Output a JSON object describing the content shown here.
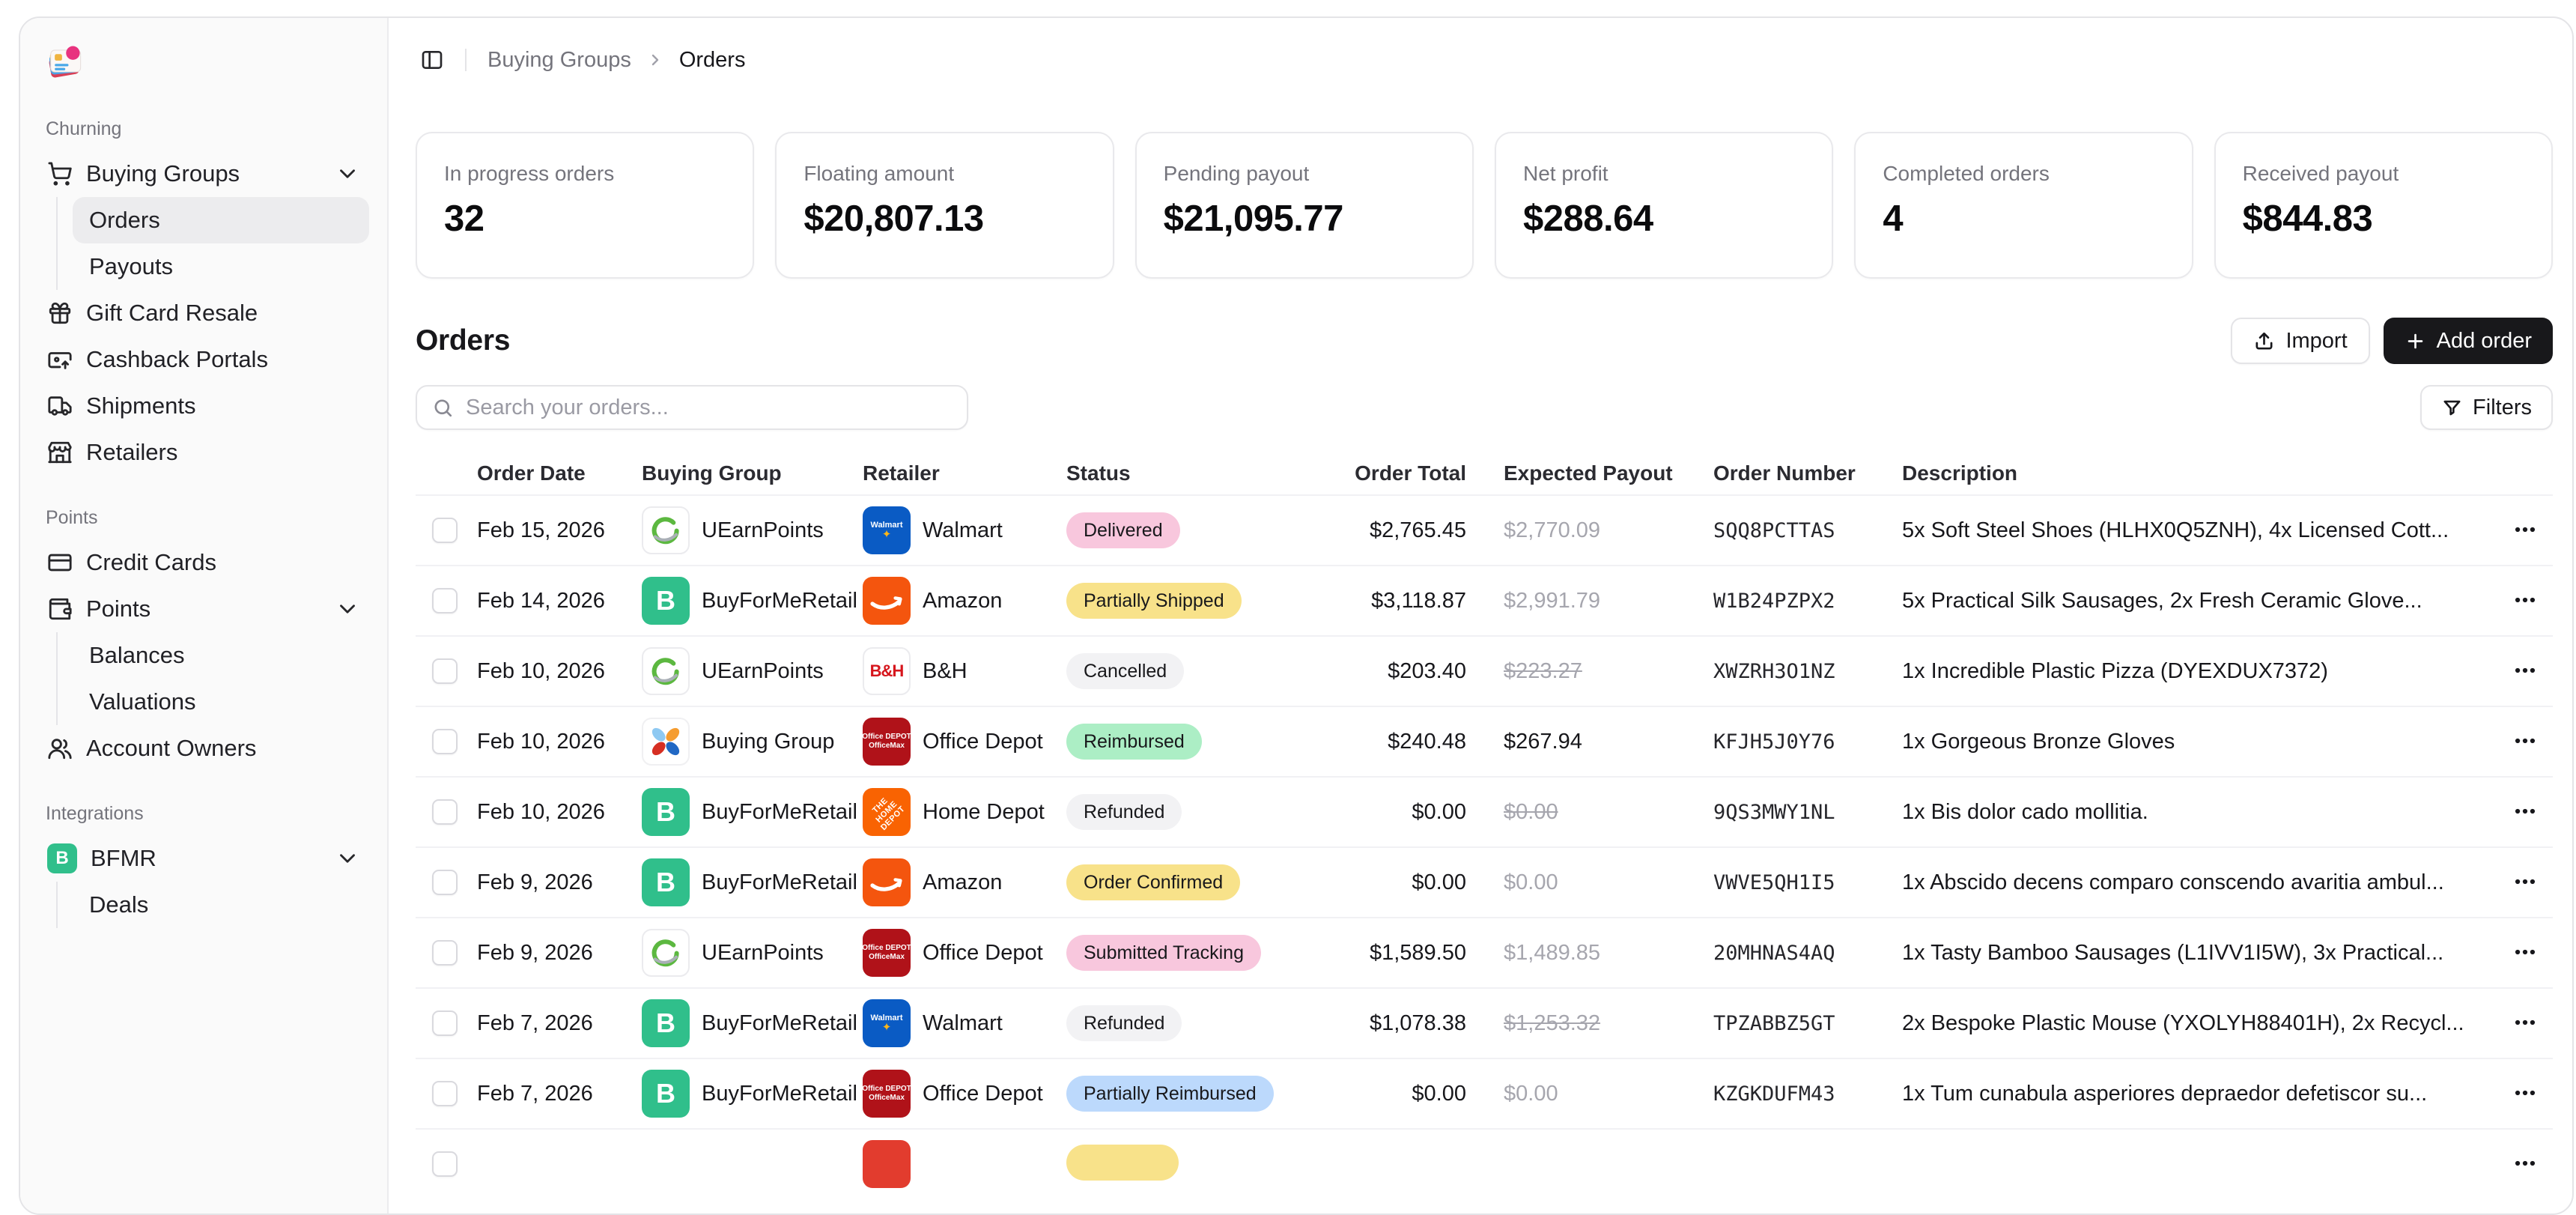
{
  "sidebar": {
    "section_churning": "Churning",
    "section_points": "Points",
    "section_integrations": "Integrations",
    "buying_groups": "Buying Groups",
    "orders": "Orders",
    "payouts": "Payouts",
    "gift_card_resale": "Gift Card Resale",
    "cashback_portals": "Cashback Portals",
    "shipments": "Shipments",
    "retailers": "Retailers",
    "credit_cards": "Credit Cards",
    "points": "Points",
    "balances": "Balances",
    "valuations": "Valuations",
    "account_owners": "Account Owners",
    "bfmr": "BFMR",
    "deals": "Deals"
  },
  "breadcrumb": {
    "parent": "Buying Groups",
    "current": "Orders"
  },
  "stats": [
    {
      "label": "In progress orders",
      "value": "32"
    },
    {
      "label": "Floating amount",
      "value": "$20,807.13"
    },
    {
      "label": "Pending payout",
      "value": "$21,095.77"
    },
    {
      "label": "Net profit",
      "value": "$288.64"
    },
    {
      "label": "Completed orders",
      "value": "4"
    },
    {
      "label": "Received payout",
      "value": "$844.83"
    }
  ],
  "orders_section": {
    "title": "Orders",
    "import_label": "Import",
    "add_order_label": "Add order",
    "search_placeholder": "Search your orders...",
    "filters_label": "Filters"
  },
  "table": {
    "columns": [
      "Order Date",
      "Buying Group",
      "Retailer",
      "Status",
      "Order Total",
      "Expected Payout",
      "Order Number",
      "Description"
    ],
    "rows": [
      {
        "date": "Feb 15, 2026",
        "group": "UEarnPoints",
        "group_icon": "uearnpoints",
        "retailer": "Walmart",
        "retailer_icon": "walmart",
        "status": "Delivered",
        "status_color": "pink",
        "total": "$2,765.45",
        "payout": "$2,770.09",
        "payout_style": "muted",
        "order_number": "SQQ8PCTTAS",
        "description": "5x Soft Steel Shoes (HLHX0Q5ZNH), 4x Licensed Cott..."
      },
      {
        "date": "Feb 14, 2026",
        "group": "BuyForMeRetail",
        "group_icon": "bfmr",
        "retailer": "Amazon",
        "retailer_icon": "amazon",
        "status": "Partially Shipped",
        "status_color": "yellow",
        "total": "$3,118.87",
        "payout": "$2,991.79",
        "payout_style": "muted",
        "order_number": "W1B24PZPX2",
        "description": "5x Practical Silk Sausages, 2x Fresh Ceramic Glove..."
      },
      {
        "date": "Feb 10, 2026",
        "group": "UEarnPoints",
        "group_icon": "uearnpoints",
        "retailer": "B&H",
        "retailer_icon": "bh",
        "status": "Cancelled",
        "status_color": "gray",
        "total": "$203.40",
        "payout": "$223.27",
        "payout_style": "struck",
        "order_number": "XWZRH3O1NZ",
        "description": "1x Incredible Plastic Pizza (DYEXDUX7372)"
      },
      {
        "date": "Feb 10, 2026",
        "group": "Buying Group",
        "group_icon": "pinwheel",
        "retailer": "Office Depot",
        "retailer_icon": "officedepot",
        "status": "Reimbursed",
        "status_color": "green",
        "total": "$240.48",
        "payout": "$267.94",
        "payout_style": "dark",
        "order_number": "KFJH5J0Y76",
        "description": "1x Gorgeous Bronze Gloves"
      },
      {
        "date": "Feb 10, 2026",
        "group": "BuyForMeRetail",
        "group_icon": "bfmr",
        "retailer": "Home Depot",
        "retailer_icon": "homedepot",
        "status": "Refunded",
        "status_color": "gray",
        "total": "$0.00",
        "payout": "$0.00",
        "payout_style": "struck",
        "order_number": "9QS3MWY1NL",
        "description": "1x Bis dolor cado mollitia."
      },
      {
        "date": "Feb 9, 2026",
        "group": "BuyForMeRetail",
        "group_icon": "bfmr",
        "retailer": "Amazon",
        "retailer_icon": "amazon",
        "status": "Order Confirmed",
        "status_color": "yellow",
        "total": "$0.00",
        "payout": "$0.00",
        "payout_style": "muted",
        "order_number": "VWVE5QH1I5",
        "description": "1x Abscido decens comparo conscendo avaritia ambul..."
      },
      {
        "date": "Feb 9, 2026",
        "group": "UEarnPoints",
        "group_icon": "uearnpoints",
        "retailer": "Office Depot",
        "retailer_icon": "officedepot",
        "status": "Submitted Tracking",
        "status_color": "pink",
        "total": "$1,589.50",
        "payout": "$1,489.85",
        "payout_style": "muted",
        "order_number": "20MHNAS4AQ",
        "description": "1x Tasty Bamboo Sausages (L1IVV1I5W), 3x Practical..."
      },
      {
        "date": "Feb 7, 2026",
        "group": "BuyForMeRetail",
        "group_icon": "bfmr",
        "retailer": "Walmart",
        "retailer_icon": "walmart",
        "status": "Refunded",
        "status_color": "gray",
        "total": "$1,078.38",
        "payout": "$1,253.32",
        "payout_style": "struck",
        "order_number": "TPZABBZ5GT",
        "description": "2x Bespoke Plastic Mouse (YXOLYH88401H), 2x Recycl..."
      },
      {
        "date": "Feb 7, 2026",
        "group": "BuyForMeRetail",
        "group_icon": "bfmr",
        "retailer": "Office Depot",
        "retailer_icon": "officedepot",
        "status": "Partially Reimbursed",
        "status_color": "blue",
        "total": "$0.00",
        "payout": "$0.00",
        "payout_style": "muted",
        "order_number": "KZGKDUFM43",
        "description": "1x Tum cunabula asperiores depraedor defetiscor su..."
      },
      {
        "date": "",
        "group": "",
        "group_icon": "none",
        "retailer": "",
        "retailer_icon": "red",
        "status": "",
        "status_color": "yellow",
        "total": "",
        "payout": "",
        "payout_style": "muted",
        "order_number": "",
        "description": ""
      }
    ]
  },
  "logo_texts": {
    "bfmr": "B",
    "walmart": "Walmart",
    "bh": "B&H",
    "officedepot_line1": "Office DEPOT",
    "officedepot_line2": "OfficeMax",
    "homedepot": "THE HOME DEPOT"
  },
  "colors": {
    "accent_dark": "#18181b",
    "badge_pink": "#f8c7dd",
    "badge_yellow": "#f8e28a",
    "badge_gray": "#f2f2f4",
    "badge_green": "#aceec5",
    "badge_blue": "#bcd9fc",
    "bfmr_green": "#30bf8b",
    "walmart_blue": "#0a5bc4",
    "amazon_orange": "#f4550e",
    "officedepot_red": "#b01219",
    "homedepot_orange": "#f96302",
    "row10_red": "#e23c2e"
  }
}
